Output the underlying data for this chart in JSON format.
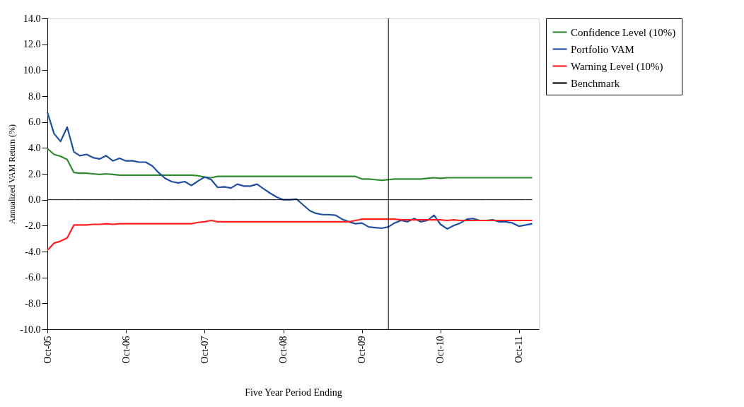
{
  "chart_data": {
    "type": "line",
    "xlabel": "Five Year Period Ending",
    "ylabel": "Annualized VAM Return (%)",
    "x": [
      "2005-10",
      "2005-11",
      "2005-12",
      "2006-01",
      "2006-02",
      "2006-03",
      "2006-04",
      "2006-05",
      "2006-06",
      "2006-07",
      "2006-08",
      "2006-09",
      "2006-10",
      "2006-11",
      "2006-12",
      "2007-01",
      "2007-02",
      "2007-03",
      "2007-04",
      "2007-05",
      "2007-06",
      "2007-07",
      "2007-08",
      "2007-09",
      "2007-10",
      "2007-11",
      "2007-12",
      "2008-01",
      "2008-02",
      "2008-03",
      "2008-04",
      "2008-05",
      "2008-06",
      "2008-07",
      "2008-08",
      "2008-09",
      "2008-10",
      "2008-11",
      "2008-12",
      "2009-01",
      "2009-02",
      "2009-03",
      "2009-04",
      "2009-05",
      "2009-06",
      "2009-07",
      "2009-08",
      "2009-09",
      "2009-10",
      "2009-11",
      "2009-12",
      "2010-01",
      "2010-02",
      "2010-03",
      "2010-04",
      "2010-05",
      "2010-06",
      "2010-07",
      "2010-08",
      "2010-09",
      "2010-10",
      "2010-11",
      "2010-12",
      "2011-01",
      "2011-02",
      "2011-03",
      "2011-04",
      "2011-05",
      "2011-06",
      "2011-07",
      "2011-08",
      "2011-09",
      "2011-10",
      "2011-11",
      "2011-12"
    ],
    "series": [
      {
        "name": "Confidence Level (10%)",
        "color": "#2e8b2e",
        "values": [
          3.95,
          3.5,
          3.35,
          3.1,
          2.1,
          2.05,
          2.05,
          2.0,
          1.95,
          2.0,
          1.95,
          1.9,
          1.9,
          1.9,
          1.9,
          1.9,
          1.9,
          1.9,
          1.9,
          1.9,
          1.9,
          1.9,
          1.9,
          1.85,
          1.75,
          1.7,
          1.8,
          1.8,
          1.8,
          1.8,
          1.8,
          1.8,
          1.8,
          1.8,
          1.8,
          1.8,
          1.8,
          1.8,
          1.8,
          1.8,
          1.8,
          1.8,
          1.8,
          1.8,
          1.8,
          1.8,
          1.8,
          1.8,
          1.6,
          1.6,
          1.55,
          1.5,
          1.55,
          1.6,
          1.6,
          1.6,
          1.6,
          1.6,
          1.65,
          1.7,
          1.65,
          1.7,
          1.7,
          1.7,
          1.7,
          1.7,
          1.7,
          1.7,
          1.7,
          1.7,
          1.7,
          1.7,
          1.7,
          1.7,
          1.7
        ]
      },
      {
        "name": "Portfolio VAM",
        "color": "#1f4fa0",
        "values": [
          6.75,
          5.1,
          4.5,
          5.6,
          3.7,
          3.4,
          3.5,
          3.25,
          3.15,
          3.4,
          3.0,
          3.2,
          3.0,
          3.0,
          2.9,
          2.9,
          2.6,
          2.1,
          1.65,
          1.4,
          1.3,
          1.4,
          1.1,
          1.45,
          1.75,
          1.55,
          0.95,
          1.0,
          0.9,
          1.2,
          1.05,
          1.05,
          1.2,
          0.85,
          0.5,
          0.2,
          0.0,
          0.0,
          0.05,
          -0.4,
          -0.85,
          -1.05,
          -1.15,
          -1.15,
          -1.2,
          -1.5,
          -1.7,
          -1.85,
          -1.8,
          -2.1,
          -2.15,
          -2.2,
          -2.1,
          -1.8,
          -1.6,
          -1.7,
          -1.45,
          -1.7,
          -1.6,
          -1.2,
          -1.9,
          -2.25,
          -2.0,
          -1.8,
          -1.5,
          -1.45,
          -1.6,
          -1.6,
          -1.55,
          -1.7,
          -1.7,
          -1.8,
          -2.05,
          -1.95,
          -1.85
        ]
      },
      {
        "name": "Warning Level (10%)",
        "color": "#ff2020",
        "values": [
          -3.9,
          -3.35,
          -3.2,
          -2.95,
          -1.95,
          -1.95,
          -1.95,
          -1.9,
          -1.9,
          -1.85,
          -1.9,
          -1.85,
          -1.85,
          -1.85,
          -1.85,
          -1.85,
          -1.85,
          -1.85,
          -1.85,
          -1.85,
          -1.85,
          -1.85,
          -1.85,
          -1.75,
          -1.7,
          -1.6,
          -1.7,
          -1.7,
          -1.7,
          -1.7,
          -1.7,
          -1.7,
          -1.7,
          -1.7,
          -1.7,
          -1.7,
          -1.7,
          -1.7,
          -1.7,
          -1.7,
          -1.7,
          -1.7,
          -1.7,
          -1.7,
          -1.7,
          -1.7,
          -1.7,
          -1.6,
          -1.5,
          -1.5,
          -1.5,
          -1.5,
          -1.5,
          -1.5,
          -1.55,
          -1.55,
          -1.55,
          -1.55,
          -1.55,
          -1.55,
          -1.55,
          -1.6,
          -1.55,
          -1.6,
          -1.6,
          -1.6,
          -1.6,
          -1.6,
          -1.6,
          -1.6,
          -1.6,
          -1.6,
          -1.6,
          -1.6,
          -1.6
        ]
      },
      {
        "name": "Benchmark",
        "color": "#000000",
        "values": [
          0,
          0,
          0,
          0,
          0,
          0,
          0,
          0,
          0,
          0,
          0,
          0,
          0,
          0,
          0,
          0,
          0,
          0,
          0,
          0,
          0,
          0,
          0,
          0,
          0,
          0,
          0,
          0,
          0,
          0,
          0,
          0,
          0,
          0,
          0,
          0,
          0,
          0,
          0,
          0,
          0,
          0,
          0,
          0,
          0,
          0,
          0,
          0,
          0,
          0,
          0,
          0,
          0,
          0,
          0,
          0,
          0,
          0,
          0,
          0,
          0,
          0,
          0,
          0,
          0,
          0,
          0,
          0,
          0,
          0,
          0,
          0,
          0,
          0,
          0
        ]
      }
    ],
    "xlim": [
      "2005-10",
      "2012-01"
    ],
    "xticks": [
      {
        "value": "2005-10",
        "label": "Oct-05"
      },
      {
        "value": "2006-10",
        "label": "Oct-06"
      },
      {
        "value": "2007-10",
        "label": "Oct-07"
      },
      {
        "value": "2008-10",
        "label": "Oct-08"
      },
      {
        "value": "2009-10",
        "label": "Oct-09"
      },
      {
        "value": "2010-10",
        "label": "Oct-10"
      },
      {
        "value": "2011-10",
        "label": "Oct-11"
      }
    ],
    "ylim": [
      -10,
      14
    ],
    "yticks": [
      {
        "value": -10,
        "label": "-10.0"
      },
      {
        "value": -8,
        "label": "-8.0"
      },
      {
        "value": -6,
        "label": "-6.0"
      },
      {
        "value": -4,
        "label": "-4.0"
      },
      {
        "value": -2,
        "label": "-2.0"
      },
      {
        "value": 0,
        "label": "0.0"
      },
      {
        "value": 2,
        "label": "2.0"
      },
      {
        "value": 4,
        "label": "4.0"
      },
      {
        "value": 6,
        "label": "6.0"
      },
      {
        "value": 8,
        "label": "8.0"
      },
      {
        "value": 10,
        "label": "10.0"
      },
      {
        "value": 12,
        "label": "12.0"
      },
      {
        "value": 14,
        "label": "14.0"
      }
    ],
    "ref_lines": [
      {
        "axis": "x",
        "value": "2010-02",
        "label": null,
        "color": "#000000"
      }
    ],
    "grid": false,
    "legend": "right",
    "line_style": "solid",
    "marker": "none"
  }
}
